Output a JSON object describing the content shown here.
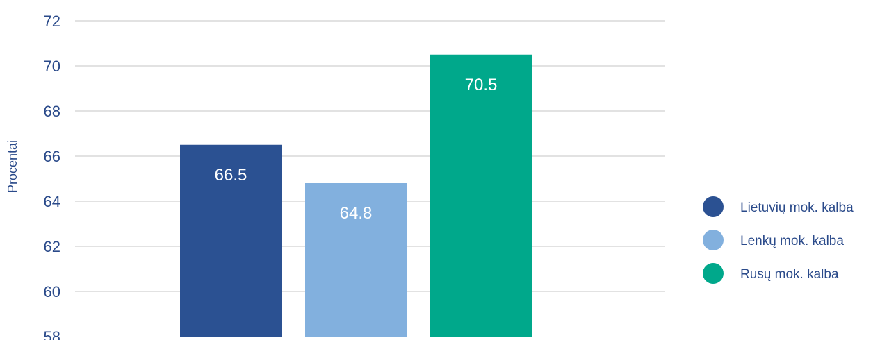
{
  "chart_data": {
    "type": "bar",
    "title": "",
    "xlabel": "",
    "ylabel": "Procentai",
    "ylim": [
      58,
      72
    ],
    "yticks": [
      72,
      70,
      68,
      66,
      64,
      62,
      60,
      58
    ],
    "grid": true,
    "legend_position": "right",
    "categories": [
      "Lietuvių mok. kalba",
      "Lenkų mok. kalba",
      "Rusų mok. kalba"
    ],
    "values": [
      66.5,
      64.8,
      70.5
    ],
    "data_labels": [
      "66.5",
      "64.8",
      "70.5"
    ],
    "colors": [
      "#2b5192",
      "#82b0de",
      "#00a88b"
    ],
    "legend": [
      "Lietuvių mok. kalba",
      "Lenkų mok. kalba",
      "Rusų mok. kalba"
    ]
  }
}
